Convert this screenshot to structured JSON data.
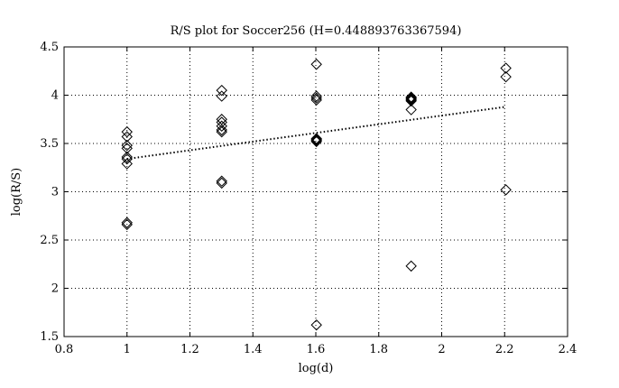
{
  "chart_data": {
    "type": "scatter",
    "title": "R/S plot for Soccer256 (H=0.448893763367594)",
    "xlabel": "log(d)",
    "ylabel": "log(R/S)",
    "xlim": [
      0.8,
      2.4
    ],
    "ylim": [
      1.5,
      4.5
    ],
    "xticks": [
      "0.8",
      "1",
      "1.2",
      "1.4",
      "1.6",
      "1.8",
      "2",
      "2.2",
      "2.4"
    ],
    "yticks": [
      "1.5",
      "2",
      "2.5",
      "3",
      "3.5",
      "4",
      "4.5"
    ],
    "grid": true,
    "marker": "diamond",
    "series": [
      {
        "points": [
          [
            1.0,
            3.62
          ],
          [
            1.0,
            3.57
          ],
          [
            1.0,
            3.48
          ],
          [
            1.0,
            3.45
          ],
          [
            1.0,
            3.36
          ],
          [
            1.0,
            3.34
          ],
          [
            1.0,
            3.29
          ],
          [
            1.0,
            2.68
          ],
          [
            1.0,
            2.66
          ],
          [
            1.301,
            4.05
          ],
          [
            1.301,
            3.99
          ],
          [
            1.301,
            3.75
          ],
          [
            1.301,
            3.72
          ],
          [
            1.301,
            3.68
          ],
          [
            1.301,
            3.64
          ],
          [
            1.301,
            3.62
          ],
          [
            1.301,
            3.11
          ],
          [
            1.301,
            3.09
          ],
          [
            1.602,
            4.32
          ],
          [
            1.602,
            3.99
          ],
          [
            1.602,
            3.97
          ],
          [
            1.602,
            3.95
          ],
          [
            1.602,
            3.55
          ],
          [
            1.602,
            3.54
          ],
          [
            1.602,
            3.53
          ],
          [
            1.602,
            3.52
          ],
          [
            1.602,
            1.62
          ],
          [
            1.903,
            3.98
          ],
          [
            1.903,
            3.97
          ],
          [
            1.903,
            3.96
          ],
          [
            1.903,
            3.95
          ],
          [
            1.903,
            3.94
          ],
          [
            1.903,
            3.85
          ],
          [
            1.903,
            2.23
          ],
          [
            2.204,
            4.28
          ],
          [
            2.204,
            4.19
          ],
          [
            2.204,
            3.02
          ]
        ]
      }
    ],
    "fit_line": {
      "style": "dotted",
      "x": [
        1.0,
        2.204
      ],
      "y": [
        3.34,
        3.88
      ]
    }
  }
}
